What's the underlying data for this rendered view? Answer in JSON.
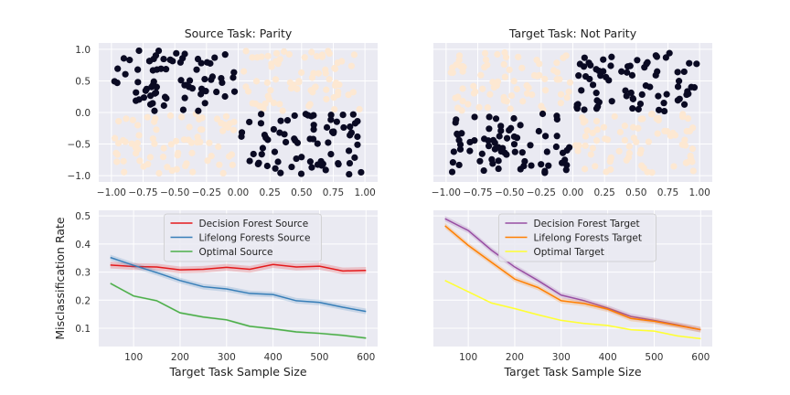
{
  "colors": {
    "panel_bg": "#eaeaf2",
    "grid": "#ffffff",
    "class_dark": "#0a0a23",
    "class_light": "#fde8d2"
  },
  "chart_data": [
    {
      "type": "scatter",
      "title": "Source Task: Parity",
      "xlim": [
        -1.1,
        1.1
      ],
      "ylim": [
        -1.1,
        1.1
      ],
      "xticks": [
        -1.0,
        -0.75,
        -0.5,
        -0.25,
        0.0,
        0.25,
        0.5,
        0.75,
        1.0
      ],
      "xtick_labels": [
        "−1.00",
        "−0.75",
        "−0.50",
        "−0.25",
        "0.00",
        "0.25",
        "0.50",
        "0.75",
        "1.00"
      ],
      "yticks": [
        1.0,
        0.5,
        0.0,
        -0.5,
        -1.0
      ],
      "ytick_labels": [
        "1.0",
        "0.5",
        "0.0",
        "−0.5",
        "−1.0"
      ],
      "grid": true,
      "description_classes": {
        "dark": "quadrants x<0,y>0 and x>0,y<0",
        "light": "quadrants x>0,y>0 and x<0,y<0"
      },
      "points_per_quadrant": 75
    },
    {
      "type": "scatter",
      "title": "Target Task: Not Parity",
      "xlim": [
        -1.1,
        1.1
      ],
      "ylim": [
        -1.1,
        1.1
      ],
      "xticks": [
        -1.0,
        -0.75,
        -0.5,
        -0.25,
        0.0,
        0.25,
        0.5,
        0.75,
        1.0
      ],
      "xtick_labels": [
        "−1.00",
        "−0.75",
        "−0.50",
        "−0.25",
        "0.00",
        "0.25",
        "0.50",
        "0.75",
        "1.00"
      ],
      "grid": true,
      "description_classes": {
        "dark": "quadrants x>0,y>0 and x<0,y<0",
        "light": "quadrants x<0,y>0 and x>0,y<0"
      },
      "points_per_quadrant": 75
    },
    {
      "type": "line",
      "xlabel": "Target Task Sample Size",
      "ylabel": "Misclassification Rate",
      "xlim": [
        25,
        625
      ],
      "ylim": [
        0.035,
        0.52
      ],
      "xticks": [
        100,
        200,
        300,
        400,
        500,
        600
      ],
      "yticks": [
        0.1,
        0.2,
        0.3,
        0.4,
        0.5
      ],
      "ytick_labels": [
        "0.1",
        "0.2",
        "0.3",
        "0.4",
        "0.5"
      ],
      "grid": true,
      "legend_position": "top-center",
      "x": [
        50,
        100,
        150,
        200,
        250,
        300,
        350,
        400,
        450,
        500,
        550,
        600
      ],
      "series": [
        {
          "name": "Decision Forest Source",
          "color": "#e41a1c",
          "values": [
            0.325,
            0.32,
            0.318,
            0.308,
            0.31,
            0.317,
            0.31,
            0.327,
            0.318,
            0.321,
            0.304,
            0.306
          ],
          "band": 0.012
        },
        {
          "name": "Lifelong Forests Source",
          "color": "#377eb8",
          "values": [
            0.352,
            0.324,
            0.298,
            0.27,
            0.248,
            0.24,
            0.224,
            0.22,
            0.198,
            0.192,
            0.175,
            0.16
          ],
          "band": 0.01
        },
        {
          "name": "Optimal Source",
          "color": "#4daf4a",
          "values": [
            0.26,
            0.215,
            0.198,
            0.155,
            0.14,
            0.13,
            0.107,
            0.098,
            0.087,
            0.082,
            0.075,
            0.065
          ],
          "band": 0.004
        }
      ]
    },
    {
      "type": "line",
      "xlabel": "Target Task Sample Size",
      "xlim": [
        25,
        625
      ],
      "ylim": [
        0.035,
        0.52
      ],
      "xticks": [
        100,
        200,
        300,
        400,
        500,
        600
      ],
      "grid": true,
      "legend_position": "top-center",
      "x": [
        50,
        100,
        150,
        200,
        250,
        300,
        350,
        400,
        450,
        500,
        550,
        600
      ],
      "series": [
        {
          "name": "Decision Forest Target",
          "color": "#984ea3",
          "values": [
            0.49,
            0.448,
            0.378,
            0.318,
            0.27,
            0.218,
            0.198,
            0.172,
            0.142,
            0.128,
            0.112,
            0.095
          ],
          "band": 0.01
        },
        {
          "name": "Lifelong Forests Target",
          "color": "#ff7f00",
          "values": [
            0.465,
            0.395,
            0.335,
            0.275,
            0.245,
            0.198,
            0.188,
            0.168,
            0.135,
            0.125,
            0.11,
            0.095
          ],
          "band": 0.01
        },
        {
          "name": "Optimal Target",
          "color": "#ffff33",
          "values": [
            0.27,
            0.23,
            0.19,
            0.17,
            0.148,
            0.128,
            0.117,
            0.11,
            0.095,
            0.09,
            0.073,
            0.063
          ],
          "band": 0.003
        }
      ]
    }
  ]
}
